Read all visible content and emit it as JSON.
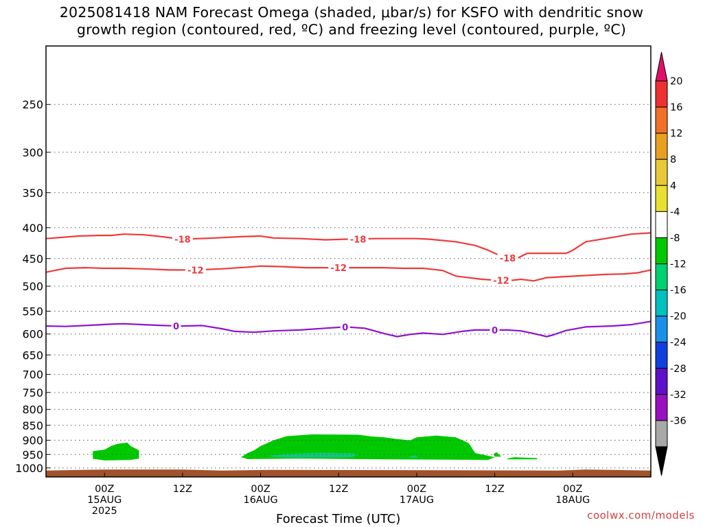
{
  "title": {
    "line1": "2025081418 NAM Forecast Omega (shaded, μbar/s) for KSFO with dendritic snow",
    "line2": "growth region (contoured, red, ºC) and freezing level (contoured, purple, ºC)"
  },
  "credit": "coolwx.com/models",
  "chart_data": {
    "type": "heatmap",
    "title": "2025081418 NAM Forecast Omega (shaded, μbar/s) for KSFO with dendritic snow growth region (contoured, red, ºC) and freezing level (contoured, purple, ºC)",
    "xlabel": "Forecast Time (UTC)",
    "ylabel": "",
    "y_scale": "log-pressure (inverted)",
    "x_hours_range": [
      -9,
      84
    ],
    "y_range": [
      1035,
      200
    ],
    "y_ticks": [
      250,
      300,
      350,
      400,
      450,
      500,
      550,
      600,
      650,
      700,
      750,
      800,
      850,
      900,
      950,
      1000
    ],
    "x_ticks": [
      {
        "hour": 0,
        "lines": [
          "00Z",
          "15AUG",
          "2025"
        ]
      },
      {
        "hour": 12,
        "lines": [
          "12Z"
        ]
      },
      {
        "hour": 24,
        "lines": [
          "00Z",
          "16AUG"
        ]
      },
      {
        "hour": 36,
        "lines": [
          "12Z"
        ]
      },
      {
        "hour": 48,
        "lines": [
          "00Z",
          "17AUG"
        ]
      },
      {
        "hour": 60,
        "lines": [
          "12Z"
        ]
      },
      {
        "hour": 72,
        "lines": [
          "00Z",
          "18AUG"
        ]
      }
    ],
    "grid": true,
    "colorbar": {
      "labels": [
        "20",
        "16",
        "12",
        "8",
        "4",
        "-4",
        "-8",
        "-12",
        "-16",
        "-20",
        "-24",
        "-28",
        "-32",
        "-36"
      ],
      "colors": [
        "#ee3030",
        "#f07028",
        "#e8a020",
        "#e8c838",
        "#e8e030",
        "#ffffff",
        "#00c800",
        "#00d070",
        "#00c0c0",
        "#1a90e8",
        "#1040e0",
        "#6010c8",
        "#9810c0",
        "#a8a8a8"
      ],
      "top_extend_color": "#e0106a",
      "bottom_extend_color": "#000000"
    },
    "series": [
      {
        "name": "-18",
        "color": "#ee3a3a",
        "points": [
          [
            -9,
            417
          ],
          [
            -4,
            413
          ],
          [
            -1,
            412
          ],
          [
            1,
            412
          ],
          [
            3,
            410
          ],
          [
            6,
            411
          ],
          [
            8,
            413
          ],
          [
            12,
            418
          ],
          [
            17,
            416
          ],
          [
            21,
            414
          ],
          [
            24,
            413
          ],
          [
            26,
            416
          ],
          [
            30,
            417
          ],
          [
            34,
            419
          ],
          [
            37,
            418
          ],
          [
            42,
            417
          ],
          [
            45,
            417
          ],
          [
            48,
            417
          ],
          [
            50,
            418
          ],
          [
            54,
            422
          ],
          [
            57,
            428
          ],
          [
            59,
            436
          ],
          [
            61,
            446
          ],
          [
            63,
            452
          ],
          [
            65,
            441
          ],
          [
            69,
            441
          ],
          [
            71,
            441
          ],
          [
            72,
            436
          ],
          [
            74,
            422
          ],
          [
            77,
            417
          ],
          [
            81,
            410
          ],
          [
            84,
            408
          ]
        ],
        "label_hours": [
          12,
          39,
          62
        ]
      },
      {
        "name": "-12",
        "color": "#ee3a3a",
        "points": [
          [
            -9,
            474
          ],
          [
            -6,
            467
          ],
          [
            -3,
            466
          ],
          [
            0,
            467
          ],
          [
            3,
            467
          ],
          [
            6,
            468
          ],
          [
            10,
            470
          ],
          [
            14,
            470
          ],
          [
            18,
            468
          ],
          [
            22,
            465
          ],
          [
            24,
            463
          ],
          [
            27,
            464
          ],
          [
            31,
            466
          ],
          [
            35,
            466
          ],
          [
            39,
            466
          ],
          [
            43,
            466
          ],
          [
            46,
            467
          ],
          [
            49,
            467
          ],
          [
            52,
            471
          ],
          [
            54,
            481
          ],
          [
            58,
            487
          ],
          [
            62,
            490
          ],
          [
            64,
            487
          ],
          [
            66,
            490
          ],
          [
            68,
            484
          ],
          [
            71,
            482
          ],
          [
            74,
            480
          ],
          [
            77,
            478
          ],
          [
            80,
            477
          ],
          [
            82,
            475
          ],
          [
            84,
            470
          ]
        ],
        "label_hours": [
          14,
          36,
          61
        ]
      },
      {
        "name": "0",
        "color": "#9010d0",
        "points": [
          [
            -9,
            582
          ],
          [
            -6,
            583
          ],
          [
            -3,
            581
          ],
          [
            1,
            578
          ],
          [
            3,
            577
          ],
          [
            6,
            579
          ],
          [
            9,
            581
          ],
          [
            12,
            582
          ],
          [
            15,
            581
          ],
          [
            18,
            588
          ],
          [
            20,
            594
          ],
          [
            23,
            596
          ],
          [
            26,
            593
          ],
          [
            30,
            591
          ],
          [
            34,
            587
          ],
          [
            37,
            584
          ],
          [
            40,
            587
          ],
          [
            43,
            599
          ],
          [
            45,
            606
          ],
          [
            47,
            601
          ],
          [
            49,
            598
          ],
          [
            52,
            601
          ],
          [
            55,
            594
          ],
          [
            57,
            591
          ],
          [
            59,
            591
          ],
          [
            62,
            591
          ],
          [
            64,
            593
          ],
          [
            66,
            599
          ],
          [
            68,
            606
          ],
          [
            69,
            602
          ],
          [
            71,
            592
          ],
          [
            74,
            584
          ],
          [
            78,
            582
          ],
          [
            81,
            579
          ],
          [
            84,
            572
          ]
        ],
        "label_hours": [
          11,
          37,
          60
        ]
      }
    ],
    "shading": [
      {
        "level": "-4",
        "color": "#00c800",
        "polygons": [
          [
            [
              -1.8,
              950
            ],
            [
              -1.8,
              938
            ],
            [
              0,
              933
            ],
            [
              1,
              920
            ],
            [
              2,
              912
            ],
            [
              3.5,
              908
            ],
            [
              4,
              920
            ],
            [
              5.3,
              935
            ],
            [
              5.3,
              965
            ],
            [
              4,
              970
            ],
            [
              0,
              972
            ],
            [
              -1.8,
              966
            ]
          ],
          [
            [
              21,
              960
            ],
            [
              22,
              945
            ],
            [
              23,
              935
            ],
            [
              24,
              920
            ],
            [
              26,
              900
            ],
            [
              28,
              886
            ],
            [
              32,
              880
            ],
            [
              39,
              881
            ],
            [
              41,
              887
            ],
            [
              43,
              890
            ],
            [
              45,
              896
            ],
            [
              47,
              900
            ],
            [
              48,
              890
            ],
            [
              51,
              884
            ],
            [
              54,
              890
            ],
            [
              56,
              910
            ],
            [
              57,
              945
            ],
            [
              60,
              960
            ],
            [
              59,
              970
            ],
            [
              43,
              968
            ],
            [
              30,
              965
            ],
            [
              22,
              967
            ]
          ],
          [
            [
              59.8,
              948
            ],
            [
              60.3,
              942
            ],
            [
              61,
              958
            ],
            [
              60,
              958
            ]
          ],
          [
            [
              61.8,
              966
            ],
            [
              63,
              960
            ],
            [
              65,
              962
            ],
            [
              66.5,
              963
            ],
            [
              66.5,
              968
            ],
            [
              62,
              968
            ]
          ]
        ]
      },
      {
        "level": "-8",
        "color": "#10c880",
        "polygons": [
          [
            [
              25,
              955
            ],
            [
              28,
              948
            ],
            [
              31,
              946
            ],
            [
              33.5,
              944
            ],
            [
              35.5,
              945
            ],
            [
              38,
              946
            ],
            [
              39,
              950
            ],
            [
              38,
              960
            ],
            [
              33,
              961
            ],
            [
              28,
              961
            ],
            [
              26,
              959
            ]
          ],
          [
            [
              46.8,
              958
            ],
            [
              47.5,
              953
            ],
            [
              48.2,
              956
            ],
            [
              48,
              961
            ],
            [
              47,
              961
            ]
          ]
        ]
      }
    ],
    "ground": {
      "color": "#a0522d",
      "pressure_top": 1010
    }
  }
}
